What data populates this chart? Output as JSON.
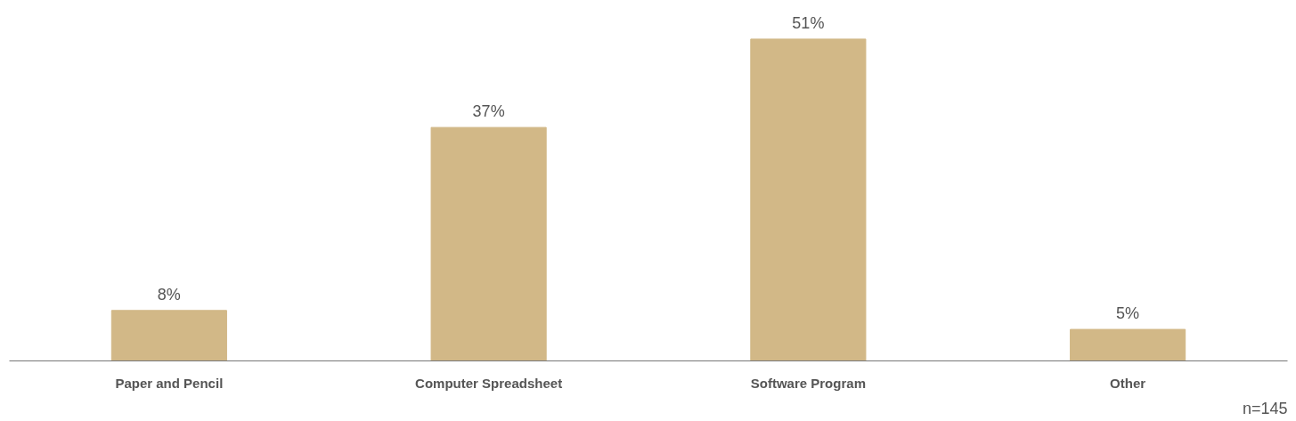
{
  "chart_data": {
    "type": "bar",
    "categories": [
      "Paper and Pencil",
      "Computer Spreadsheet",
      "Software Program",
      "Other"
    ],
    "values": [
      8,
      37,
      51,
      5
    ],
    "value_labels": [
      "8%",
      "37%",
      "51%",
      "5%"
    ],
    "color": "#d2b887",
    "grid": false,
    "tick_labels": "x",
    "annotations": [
      "n=145"
    ]
  }
}
